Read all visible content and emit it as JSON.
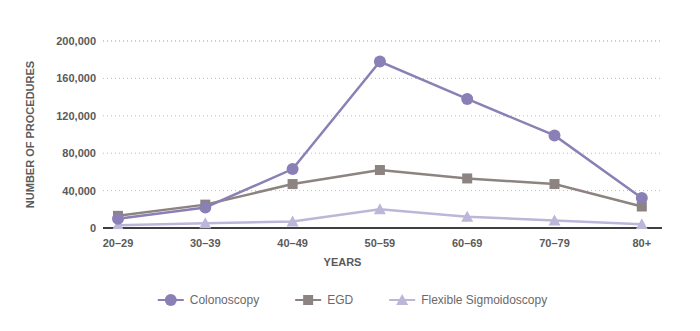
{
  "chart_data": {
    "type": "line",
    "x_label": "YEARS",
    "y_label": "NUMBER OF PROCEDURES",
    "categories": [
      "20–29",
      "30–39",
      "40–49",
      "50–59",
      "60–69",
      "70–79",
      "80+"
    ],
    "series": [
      {
        "name": "Colonoscopy",
        "color": "#8b80b6",
        "marker": "circle",
        "values": [
          10000,
          22000,
          63000,
          178000,
          138000,
          99000,
          32000
        ]
      },
      {
        "name": "EGD",
        "color": "#8d8381",
        "marker": "square",
        "values": [
          13000,
          25000,
          47000,
          62000,
          53000,
          47000,
          23000
        ]
      },
      {
        "name": "Flexible Sigmoidoscopy",
        "color": "#bcb6d8",
        "marker": "triangle",
        "values": [
          3000,
          5000,
          7000,
          20000,
          12000,
          8000,
          4000
        ]
      }
    ],
    "ylim": [
      0,
      200000
    ],
    "yticks": [
      0,
      {
        "value": 40000,
        "label": "40,000"
      },
      {
        "value": 80000,
        "label": "80,000"
      },
      {
        "value": 120000,
        "label": "120,000"
      },
      {
        "value": 160000,
        "label": "160,000"
      },
      {
        "value": 200000,
        "label": "200,000"
      }
    ],
    "grid": true,
    "legend": "bottom"
  }
}
